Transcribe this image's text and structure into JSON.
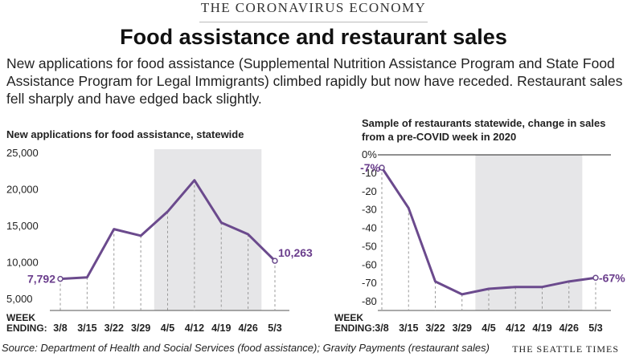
{
  "kicker": "THE CORONAVIRUS ECONOMY",
  "title": "Food assistance and restaurant sales",
  "dek": "New applications for food assistance (Supplemental Nutrition Assistance Program and State Food Assistance Program for Legal Immigrants) climbed rapidly but now have receded. Restaurant sales fell sharply and have edged back slightly.",
  "source": "Source: Department of Health and Social Services (food assistance); Gravity Payments (restaurant sales)",
  "brand": "THE SEATTLE TIMES",
  "colors": {
    "line": "#6b4a8d",
    "shade": "#e6e6e8",
    "label": "#6a3d8c"
  },
  "chart_data": [
    {
      "type": "line",
      "title": "New applications for food assistance, statewide",
      "x_prefix": [
        "WEEK",
        "ENDING:"
      ],
      "categories": [
        "3/8",
        "3/15",
        "3/22",
        "3/29",
        "4/5",
        "4/12",
        "4/19",
        "4/26",
        "5/3"
      ],
      "values": [
        7792,
        8000,
        14600,
        13700,
        17000,
        21300,
        15500,
        13900,
        10263
      ],
      "yticks": [
        "25,000",
        "20,000",
        "15,000",
        "10,000",
        "5,000"
      ],
      "ylim": [
        5000,
        25000
      ],
      "shaded_range": [
        "4/5",
        "4/26"
      ],
      "annotations": [
        {
          "index": 0,
          "text": "7,792"
        },
        {
          "index": 8,
          "text": "10,263"
        }
      ],
      "grid": false
    },
    {
      "type": "line",
      "title": "Sample of restaurants statewide, change in sales from a pre-COVID week in 2020",
      "x_prefix": [
        "WEEK",
        "ENDING:"
      ],
      "categories": [
        "3/8",
        "3/15",
        "3/22",
        "3/29",
        "4/5",
        "4/12",
        "4/19",
        "4/26",
        "5/3"
      ],
      "values": [
        -7,
        -29,
        -69,
        -76,
        -73,
        -72,
        -72,
        -69,
        -67
      ],
      "yticks": [
        "0%",
        "-10",
        "-20",
        "-30",
        "-40",
        "-50",
        "-60",
        "-70",
        "-80"
      ],
      "ylim": [
        -80,
        0
      ],
      "shaded_range": [
        "4/5",
        "4/26"
      ],
      "annotations": [
        {
          "index": 0,
          "text": "-7%"
        },
        {
          "index": 8,
          "text": "-67%"
        }
      ],
      "grid": false
    }
  ]
}
